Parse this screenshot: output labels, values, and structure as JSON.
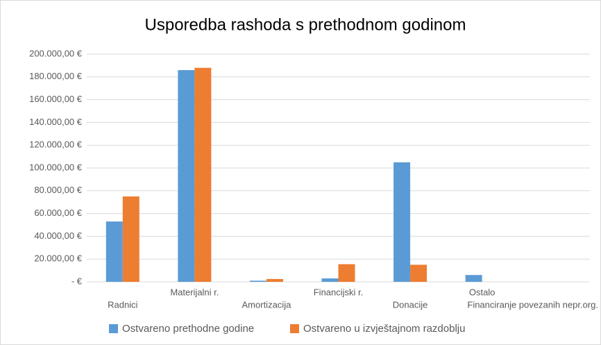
{
  "chart_data": {
    "type": "bar",
    "title": "Usporedba rashoda s prethodnom godinom",
    "categories": [
      "Radnici",
      "Materijalni r.",
      "Amortizacija",
      "Financijski r.",
      "Donacije",
      "Ostalo",
      "Financiranje povezanih nepr.org."
    ],
    "series": [
      {
        "name": "Ostvareno prethodne godine",
        "color": "#5b9bd5",
        "values": [
          53000,
          186000,
          1000,
          3000,
          105000,
          6000,
          0
        ]
      },
      {
        "name": "Ostvareno u izvještajnom razdoblju",
        "color": "#ed7d31",
        "values": [
          75000,
          188000,
          2500,
          15500,
          15000,
          0,
          0
        ]
      }
    ],
    "ylim": [
      0,
      200000
    ],
    "yticks": [
      {
        "value": 0,
        "label": "-   €"
      },
      {
        "value": 20000,
        "label": "20.000,00 €"
      },
      {
        "value": 40000,
        "label": "40.000,00 €"
      },
      {
        "value": 60000,
        "label": "60.000,00 €"
      },
      {
        "value": 80000,
        "label": "80.000,00 €"
      },
      {
        "value": 100000,
        "label": "100.000,00 €"
      },
      {
        "value": 120000,
        "label": "120.000,00 €"
      },
      {
        "value": 140000,
        "label": "140.000,00 €"
      },
      {
        "value": 160000,
        "label": "160.000,00 €"
      },
      {
        "value": 180000,
        "label": "180.000,00 €"
      },
      {
        "value": 200000,
        "label": "200.000,00 €"
      }
    ],
    "grid": true,
    "legend": "bottom"
  }
}
